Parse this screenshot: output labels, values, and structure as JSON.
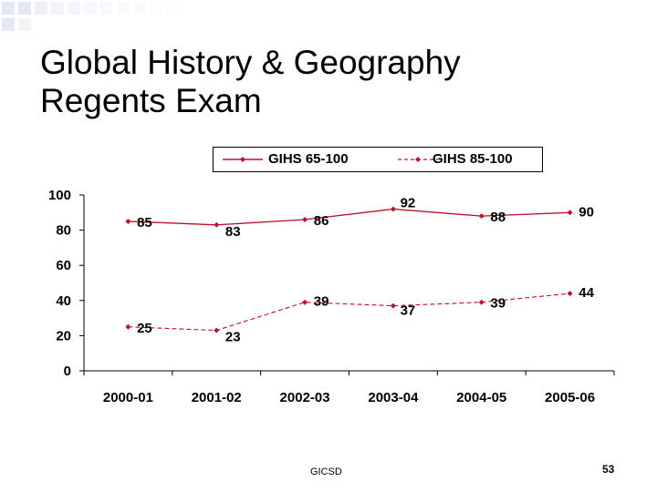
{
  "slide": {
    "title_line1": "Global History & Geography",
    "title_line2": "Regents Exam",
    "footer": "GICSD",
    "page_number": "53"
  },
  "colors": {
    "series_line": "#C0102A",
    "text": "#000000",
    "deco_squares": "#E4E8F2"
  },
  "chart_data": {
    "type": "line",
    "categories": [
      "2000-01",
      "2001-02",
      "2002-03",
      "2003-04",
      "2004-05",
      "2005-06"
    ],
    "series": [
      {
        "name": "GIHS 65-100",
        "values": [
          85,
          83,
          86,
          92,
          88,
          90
        ],
        "style": "solid"
      },
      {
        "name": "GIHS 85-100",
        "values": [
          25,
          23,
          39,
          37,
          39,
          44
        ],
        "style": "dashed"
      }
    ],
    "ylim": [
      0,
      100
    ],
    "yticks": [
      0,
      20,
      40,
      60,
      80,
      100
    ],
    "legend_position": "top",
    "grid": false,
    "data_labels": true
  }
}
